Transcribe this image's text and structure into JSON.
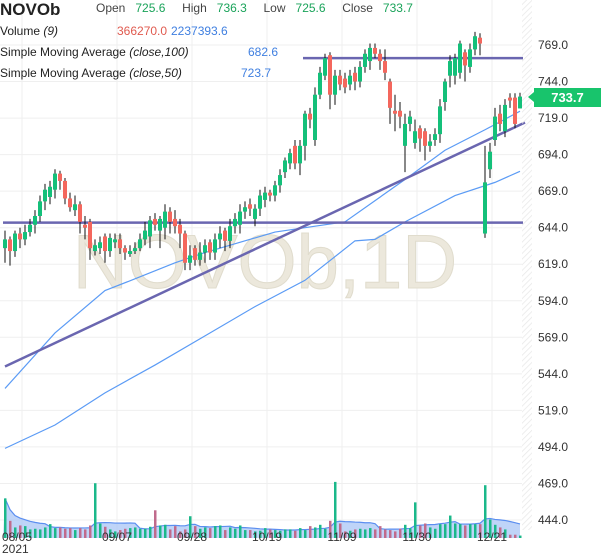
{
  "header": {
    "symbol": "NOVOb",
    "open_label": "Open",
    "open": "725.6",
    "high_label": "High",
    "high": "736.3",
    "low_label": "Low",
    "low": "725.6",
    "close_label": "Close",
    "close": "733.7",
    "volume_label": "Volume",
    "volume_param": "(9)",
    "volume_value": "366270.0",
    "volume_ma": "2237393.6",
    "sma100_label": "Simple Moving Average",
    "sma100_param": "(close,100)",
    "sma100_value": "682.6",
    "sma50_label": "Simple Moving Average",
    "sma50_param": "(close,50)",
    "sma50_value": "723.7"
  },
  "current_price": "733.7",
  "watermark": "NOVOb,1D",
  "colors": {
    "up": "#14c07a",
    "down": "#f4675d",
    "vol_up": "#1bb88a",
    "vol_down": "#c06b8c",
    "sma": "#5b9bf5",
    "trend": "#6a66b0",
    "badge": "#18c46c"
  },
  "chart_data": {
    "type": "candlestick",
    "y_ticks": [
      "769.0",
      "744.0",
      "719.0",
      "694.0",
      "669.0",
      "644.0",
      "619.0",
      "594.0",
      "569.0",
      "544.0",
      "519.0",
      "494.0",
      "469.0",
      "444.0"
    ],
    "x_ticks": [
      {
        "label": "08/05",
        "bar": 3
      },
      {
        "label": "09/07",
        "bar": 22
      },
      {
        "label": "09/28",
        "bar": 37
      },
      {
        "label": "10/19",
        "bar": 52
      },
      {
        "label": "11/09",
        "bar": 67
      },
      {
        "label": "11/30",
        "bar": 82
      },
      {
        "label": "12/21",
        "bar": 97
      }
    ],
    "year_label": "2021",
    "ylim": [
      437,
      780
    ],
    "ohlc": [
      [
        630,
        642,
        620,
        636
      ],
      [
        636,
        638,
        618,
        628
      ],
      [
        628,
        642,
        624,
        640
      ],
      [
        640,
        644,
        630,
        636
      ],
      [
        636,
        646,
        632,
        641
      ],
      [
        641,
        650,
        638,
        646
      ],
      [
        646,
        656,
        640,
        652
      ],
      [
        652,
        666,
        648,
        662
      ],
      [
        662,
        674,
        656,
        670
      ],
      [
        665,
        676,
        660,
        672
      ],
      [
        670,
        684,
        664,
        681
      ],
      [
        681,
        683,
        670,
        676
      ],
      [
        676,
        678,
        660,
        664
      ],
      [
        664,
        668,
        655,
        658
      ],
      [
        656,
        666,
        652,
        660
      ],
      [
        660,
        662,
        640,
        648
      ],
      [
        646,
        652,
        636,
        644
      ],
      [
        648,
        650,
        622,
        630
      ],
      [
        628,
        636,
        625,
        632
      ],
      [
        630,
        638,
        626,
        634
      ],
      [
        638,
        640,
        620,
        628
      ],
      [
        628,
        640,
        624,
        637
      ],
      [
        634,
        640,
        630,
        636
      ],
      [
        636,
        640,
        626,
        630
      ],
      [
        630,
        632,
        622,
        627
      ],
      [
        626,
        632,
        624,
        628
      ],
      [
        628,
        634,
        626,
        630
      ],
      [
        630,
        640,
        628,
        636
      ],
      [
        636,
        648,
        632,
        642
      ],
      [
        638,
        652,
        630,
        649
      ],
      [
        650,
        654,
        642,
        646
      ],
      [
        642,
        652,
        630,
        650
      ],
      [
        644,
        660,
        636,
        655
      ],
      [
        655,
        658,
        640,
        648
      ],
      [
        650,
        656,
        640,
        645
      ],
      [
        646,
        650,
        630,
        640
      ],
      [
        640,
        642,
        615,
        620
      ],
      [
        620,
        632,
        615,
        625
      ],
      [
        630,
        632,
        618,
        622
      ],
      [
        622,
        634,
        618,
        627
      ],
      [
        627,
        636,
        620,
        632
      ],
      [
        634,
        636,
        622,
        627
      ],
      [
        627,
        640,
        622,
        636
      ],
      [
        636,
        645,
        630,
        640
      ],
      [
        642,
        644,
        628,
        635
      ],
      [
        635,
        650,
        630,
        645
      ],
      [
        645,
        654,
        640,
        650
      ],
      [
        646,
        660,
        640,
        655
      ],
      [
        655,
        662,
        650,
        658
      ],
      [
        660,
        664,
        652,
        657
      ],
      [
        650,
        660,
        645,
        657
      ],
      [
        657,
        670,
        652,
        666
      ],
      [
        663,
        672,
        658,
        668
      ],
      [
        668,
        670,
        662,
        666
      ],
      [
        666,
        676,
        662,
        673
      ],
      [
        673,
        684,
        668,
        680
      ],
      [
        682,
        692,
        678,
        690
      ],
      [
        688,
        698,
        684,
        695
      ],
      [
        700,
        704,
        684,
        688
      ],
      [
        688,
        704,
        680,
        700
      ],
      [
        700,
        724,
        690,
        722
      ],
      [
        722,
        726,
        712,
        718
      ],
      [
        704,
        740,
        700,
        735
      ],
      [
        735,
        754,
        732,
        750
      ],
      [
        748,
        763,
        745,
        760
      ],
      [
        762,
        764,
        725,
        735
      ],
      [
        735,
        752,
        728,
        748
      ],
      [
        748,
        752,
        738,
        742
      ],
      [
        746,
        750,
        736,
        740
      ],
      [
        742,
        752,
        738,
        748
      ],
      [
        750,
        754,
        738,
        744
      ],
      [
        744,
        758,
        740,
        754
      ],
      [
        754,
        766,
        750,
        763
      ],
      [
        758,
        770,
        752,
        767
      ],
      [
        767,
        770,
        760,
        763
      ],
      [
        763,
        766,
        752,
        758
      ],
      [
        758,
        766,
        745,
        750
      ],
      [
        744,
        746,
        715,
        726
      ],
      [
        724,
        735,
        710,
        722
      ],
      [
        724,
        730,
        712,
        720
      ],
      [
        700,
        722,
        682,
        715
      ],
      [
        715,
        724,
        710,
        720
      ],
      [
        702,
        718,
        698,
        710
      ],
      [
        712,
        714,
        696,
        705
      ],
      [
        710,
        712,
        690,
        700
      ],
      [
        700,
        708,
        696,
        703
      ],
      [
        704,
        712,
        700,
        708
      ],
      [
        708,
        732,
        702,
        727
      ],
      [
        730,
        746,
        724,
        744
      ],
      [
        748,
        762,
        740,
        758
      ],
      [
        748,
        763,
        742,
        760
      ],
      [
        750,
        772,
        746,
        770
      ],
      [
        764,
        766,
        744,
        755
      ],
      [
        754,
        770,
        750,
        766
      ],
      [
        766,
        778,
        762,
        775
      ],
      [
        774,
        777,
        762,
        770
      ],
      [
        640,
        700,
        637,
        675
      ],
      [
        684,
        702,
        678,
        696
      ],
      [
        704,
        726,
        700,
        720
      ],
      [
        722,
        728,
        710,
        715
      ],
      [
        710,
        732,
        706,
        728
      ],
      [
        733,
        736,
        726,
        731
      ],
      [
        733,
        736,
        712,
        715
      ],
      [
        725.6,
        736.3,
        725.6,
        733.7
      ]
    ],
    "volume_millions": [
      6.0,
      2.6,
      1.6,
      1.9,
      1.8,
      1.3,
      1.4,
      1.3,
      1.6,
      2.1,
      1.5,
      1.6,
      1.4,
      1.5,
      1.2,
      1.5,
      1.3,
      1.9,
      8.3,
      2.2,
      1.7,
      1.3,
      1.0,
      1.2,
      1.4,
      1.5,
      1.6,
      1.4,
      1.4,
      1.7,
      4.2,
      1.9,
      2.0,
      1.3,
      1.8,
      1.0,
      1.3,
      3.3,
      1.8,
      1.4,
      1.6,
      1.5,
      1.8,
      1.9,
      1.2,
      1.6,
      1.4,
      1.9,
      1.2,
      1.2,
      1.0,
      1.1,
      1.5,
      1.3,
      1.2,
      1.1,
      1.3,
      1.3,
      1.1,
      1.5,
      1.2,
      1.8,
      1.6,
      2.0,
      1.4,
      2.6,
      8.5,
      2.2,
      1.0,
      1.1,
      1.3,
      1.4,
      1.3,
      1.5,
      1.3,
      1.8,
      1.3,
      1.2,
      1.0,
      1.4,
      2.0,
      1.5,
      5.4,
      1.9,
      2.2,
      1.6,
      1.4,
      2.1,
      2.1,
      3.4,
      2.2,
      2.1,
      1.9,
      2.1,
      2.1,
      2.1,
      8.0,
      2.8,
      2.0,
      1.6,
      1.3,
      0.5,
      0.5,
      0.37
    ],
    "sma50": [
      [
        0,
        534
      ],
      [
        10,
        572
      ],
      [
        20,
        601
      ],
      [
        26,
        609
      ],
      [
        34,
        620
      ],
      [
        40,
        627
      ],
      [
        54,
        641
      ],
      [
        68,
        648
      ],
      [
        80,
        677
      ],
      [
        88,
        697
      ],
      [
        96,
        711
      ],
      [
        103,
        723.7
      ]
    ],
    "sma100": [
      [
        0,
        493
      ],
      [
        10,
        509
      ],
      [
        20,
        531
      ],
      [
        30,
        550
      ],
      [
        40,
        570
      ],
      [
        50,
        590
      ],
      [
        60,
        608
      ],
      [
        70,
        635
      ],
      [
        74,
        636
      ],
      [
        80,
        648
      ],
      [
        90,
        666
      ],
      [
        98,
        675
      ],
      [
        103,
        682.6
      ]
    ],
    "trend_line": [
      [
        0,
        549
      ],
      [
        104,
        716
      ]
    ],
    "h_lines": [
      {
        "from": 60,
        "to": 104,
        "price": 760
      },
      {
        "from": 0,
        "to": 104,
        "price": 647.5
      }
    ]
  }
}
